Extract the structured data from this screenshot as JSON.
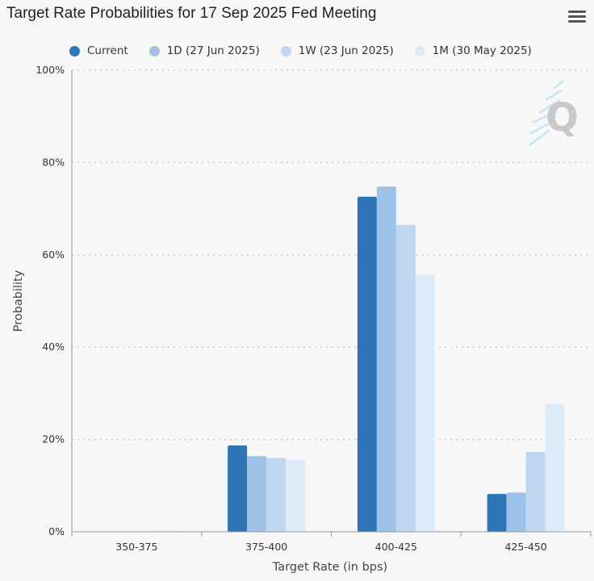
{
  "title": "Target Rate Probabilities for 17 Sep 2025 Fed Meeting",
  "menu_icon": "hamburger-menu-icon",
  "watermark_icon": "q-logo-icon",
  "colors": {
    "current": "#2e75b6",
    "d1": "#9cc2e8",
    "w1": "#bdd7f0",
    "m1": "#ddeaf7",
    "grid": "#cccccc",
    "axis": "#999999"
  },
  "chart_data": {
    "type": "bar",
    "title": "Target Rate Probabilities for 17 Sep 2025 Fed Meeting",
    "xlabel": "Target Rate (in bps)",
    "ylabel": "Probability",
    "categories": [
      "350-375",
      "375-400",
      "400-425",
      "425-450"
    ],
    "yticks": [
      "0%",
      "20%",
      "40%",
      "60%",
      "80%",
      "100%"
    ],
    "ylim": [
      0,
      100
    ],
    "grid": true,
    "legend_position": "top",
    "series": [
      {
        "name": "Current",
        "values": [
          0,
          18.7,
          72.6,
          8.2
        ]
      },
      {
        "name": "1D (27 Jun 2025)",
        "values": [
          0,
          16.4,
          74.8,
          8.5
        ]
      },
      {
        "name": "1W (23 Jun 2025)",
        "values": [
          0,
          16.0,
          66.5,
          17.3
        ]
      },
      {
        "name": "1M (30 May 2025)",
        "values": [
          0.3,
          15.6,
          55.7,
          27.8
        ]
      }
    ]
  }
}
